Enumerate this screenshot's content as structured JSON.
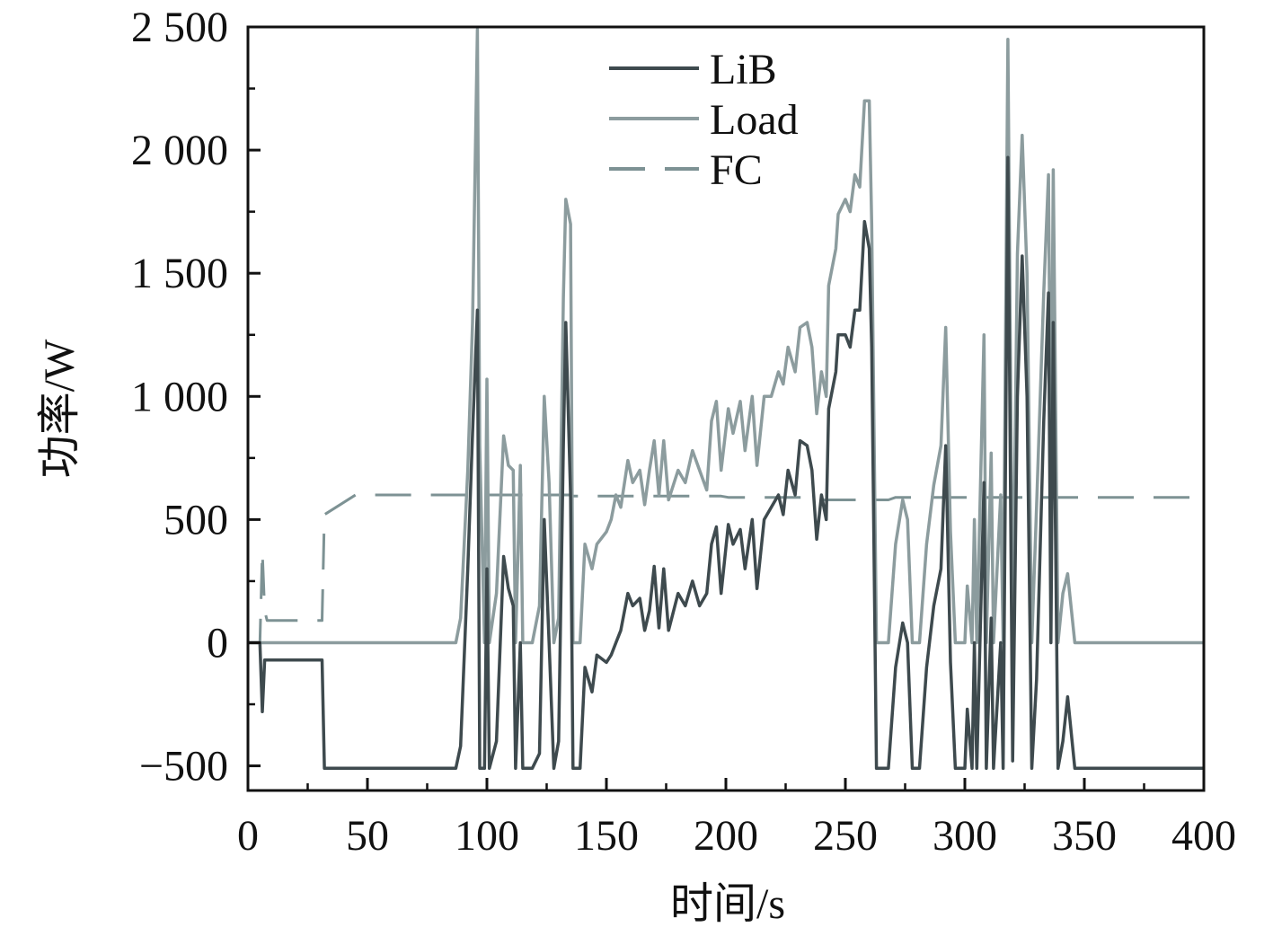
{
  "chart_data": {
    "type": "line",
    "xlabel": "时间/s",
    "ylabel": "功率/W",
    "xlim": [
      0,
      400
    ],
    "xticks": [
      0,
      50,
      100,
      150,
      200,
      250,
      300,
      350,
      400
    ],
    "ylim": [
      -600,
      2500
    ],
    "yticks": [
      {
        "value": -500,
        "label": "−500"
      },
      0,
      500,
      {
        "value": 1000,
        "label": "1 000"
      },
      {
        "value": 1500,
        "label": "1 500"
      },
      {
        "value": 2000,
        "label": "2 000"
      },
      {
        "value": 2500,
        "label": "2 500"
      }
    ],
    "legend": "upper center",
    "x": [
      0,
      5,
      6,
      7,
      8,
      31,
      32,
      45,
      87,
      89,
      92,
      94,
      96,
      97,
      99,
      100,
      101,
      104,
      107,
      109,
      111,
      112,
      114,
      115,
      119,
      122,
      124,
      126,
      128,
      130,
      132,
      133,
      135,
      136,
      139,
      141,
      144,
      146,
      150,
      152,
      154,
      156,
      159,
      161,
      164,
      166,
      168,
      170,
      172,
      174,
      176,
      180,
      183,
      186,
      189,
      192,
      194,
      196,
      198,
      201,
      203,
      206,
      208,
      211,
      213,
      216,
      219,
      222,
      224,
      226,
      229,
      231,
      234,
      236,
      238,
      240,
      242,
      243,
      246,
      247,
      250,
      252,
      254,
      256,
      258,
      260,
      261,
      263,
      268,
      271,
      274,
      276,
      278,
      281,
      284,
      287,
      290,
      292,
      294,
      296,
      300,
      301,
      303,
      304,
      305,
      308,
      309,
      311,
      312,
      315,
      316,
      318,
      320,
      322,
      324,
      326,
      328,
      330,
      333,
      335,
      336,
      337,
      339,
      341,
      343,
      346,
      364,
      400
    ],
    "series": [
      {
        "name": "LiB",
        "color": "#3e4a4e",
        "dash": "solid",
        "values": [
          0,
          0,
          -280,
          -70,
          -70,
          -70,
          -510,
          -510,
          -510,
          -420,
          300,
          850,
          1350,
          -510,
          -510,
          300,
          -510,
          -400,
          350,
          220,
          150,
          -510,
          0,
          -510,
          -510,
          -450,
          500,
          0,
          -510,
          -400,
          800,
          1300,
          600,
          -510,
          -510,
          -100,
          -200,
          -50,
          -80,
          -50,
          0,
          50,
          200,
          150,
          180,
          50,
          130,
          310,
          60,
          300,
          50,
          200,
          150,
          250,
          150,
          200,
          400,
          470,
          200,
          480,
          400,
          460,
          300,
          500,
          220,
          500,
          550,
          600,
          520,
          700,
          600,
          820,
          800,
          700,
          420,
          600,
          500,
          950,
          1100,
          1250,
          1250,
          1200,
          1350,
          1350,
          1710,
          1600,
          1200,
          -510,
          -510,
          -100,
          80,
          0,
          -510,
          -510,
          -100,
          150,
          300,
          800,
          -80,
          -510,
          -510,
          -270,
          -510,
          0,
          -510,
          650,
          -510,
          100,
          -510,
          0,
          -510,
          1970,
          -480,
          1000,
          1570,
          1000,
          -510,
          -150,
          900,
          1420,
          0,
          1300,
          -510,
          -400,
          -220,
          -510,
          -510,
          -510
        ]
      },
      {
        "name": "Load",
        "color": "#8c9c9e",
        "dash": "solid",
        "values": [
          0,
          0,
          0,
          0,
          0,
          0,
          0,
          0,
          0,
          100,
          700,
          1300,
          2490,
          800,
          0,
          1070,
          0,
          200,
          840,
          720,
          700,
          0,
          720,
          0,
          0,
          150,
          1000,
          650,
          0,
          100,
          1400,
          1800,
          1700,
          0,
          0,
          400,
          300,
          400,
          450,
          500,
          600,
          550,
          740,
          650,
          700,
          560,
          700,
          820,
          600,
          820,
          580,
          700,
          650,
          780,
          700,
          620,
          900,
          980,
          700,
          950,
          850,
          980,
          780,
          1000,
          720,
          1000,
          1000,
          1100,
          1050,
          1200,
          1100,
          1280,
          1300,
          1200,
          930,
          1100,
          1000,
          1450,
          1600,
          1740,
          1800,
          1750,
          1900,
          1850,
          2200,
          2200,
          1700,
          0,
          0,
          400,
          580,
          500,
          0,
          0,
          400,
          640,
          800,
          1280,
          450,
          0,
          0,
          230,
          0,
          500,
          0,
          1250,
          0,
          770,
          0,
          600,
          0,
          2450,
          0,
          1580,
          2060,
          1500,
          0,
          550,
          1420,
          1900,
          600,
          1920,
          0,
          200,
          280,
          0,
          0,
          0
        ]
      },
      {
        "name": "FC",
        "color": "#7d9294",
        "dash": "dashed",
        "values": [
          0,
          0,
          370,
          130,
          90,
          90,
          520,
          600,
          600,
          600,
          600,
          600,
          600,
          600,
          600,
          600,
          600,
          600,
          600,
          600,
          600,
          600,
          600,
          600,
          600,
          600,
          600,
          600,
          600,
          600,
          600,
          600,
          600,
          595,
          595,
          595,
          595,
          595,
          595,
          595,
          595,
          595,
          595,
          595,
          595,
          595,
          595,
          595,
          595,
          595,
          595,
          595,
          595,
          595,
          595,
          595,
          595,
          595,
          595,
          590,
          590,
          590,
          590,
          590,
          590,
          590,
          590,
          590,
          590,
          590,
          590,
          590,
          590,
          590,
          580,
          580,
          580,
          580,
          580,
          580,
          580,
          580,
          580,
          580,
          580,
          580,
          580,
          580,
          580,
          590,
          590,
          590,
          590,
          590,
          590,
          590,
          590,
          590,
          590,
          590,
          590,
          590,
          590,
          590,
          590,
          590,
          590,
          590,
          590,
          590,
          590,
          590,
          590,
          590,
          590,
          590,
          590,
          590,
          590,
          590,
          590,
          590,
          590,
          590,
          590,
          590,
          590,
          590
        ]
      }
    ]
  }
}
